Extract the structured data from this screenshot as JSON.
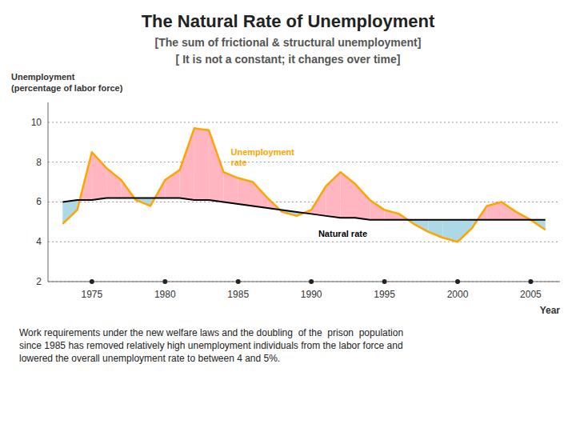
{
  "chart_data": {
    "type": "line",
    "title": "The Natural Rate of Unemployment",
    "subtitle": [
      "[The sum of frictional & structural unemployment]",
      "[ It is not a constant; it changes over time]"
    ],
    "ylabel": "Unemployment\n(percentage of labor force)",
    "xlabel": "Year",
    "annotations": [
      "Work requirements under the new welfare laws and the doubling  of the  prison  population\nsince 1985 has removed relatively high unemployment individuals from the labor force and\nlowered the overall unemployment rate to between 4 and 5%."
    ],
    "x": [
      1973,
      1974,
      1975,
      1976,
      1977,
      1978,
      1979,
      1980,
      1981,
      1982,
      1983,
      1984,
      1985,
      1986,
      1987,
      1988,
      1989,
      1990,
      1991,
      1992,
      1993,
      1994,
      1995,
      1996,
      1997,
      1998,
      1999,
      2000,
      2001,
      2002,
      2003,
      2004,
      2005,
      2006
    ],
    "series": [
      {
        "name": "Unemployment\nrate",
        "color": "#FFA500",
        "values": [
          4.9,
          5.6,
          8.5,
          7.7,
          7.1,
          6.1,
          5.8,
          7.1,
          7.6,
          9.7,
          9.6,
          7.5,
          7.2,
          7.0,
          6.2,
          5.5,
          5.3,
          5.6,
          6.8,
          7.5,
          6.9,
          6.1,
          5.6,
          5.4,
          4.9,
          4.5,
          4.2,
          4.0,
          4.7,
          5.8,
          6.0,
          5.5,
          5.1,
          4.6
        ]
      },
      {
        "name": "Natural rate",
        "color": "#000000",
        "values": [
          6.0,
          6.1,
          6.1,
          6.2,
          6.2,
          6.2,
          6.2,
          6.2,
          6.2,
          6.1,
          6.1,
          6.0,
          5.9,
          5.8,
          5.7,
          5.6,
          5.5,
          5.4,
          5.3,
          5.2,
          5.2,
          5.1,
          5.1,
          5.1,
          5.1,
          5.1,
          5.1,
          5.1,
          5.1,
          5.1,
          5.1,
          5.1,
          5.1,
          5.1
        ]
      }
    ],
    "colors": [
      "#ffb6c1",
      "#add8e6"
    ],
    "xlim": [
      1972,
      2007
    ],
    "ylim": [
      2,
      11
    ],
    "xticks": [
      1975,
      1980,
      1985,
      1990,
      1995,
      2000,
      2005
    ],
    "yticks": [
      2,
      4,
      6,
      8,
      10
    ],
    "grid": true
  }
}
